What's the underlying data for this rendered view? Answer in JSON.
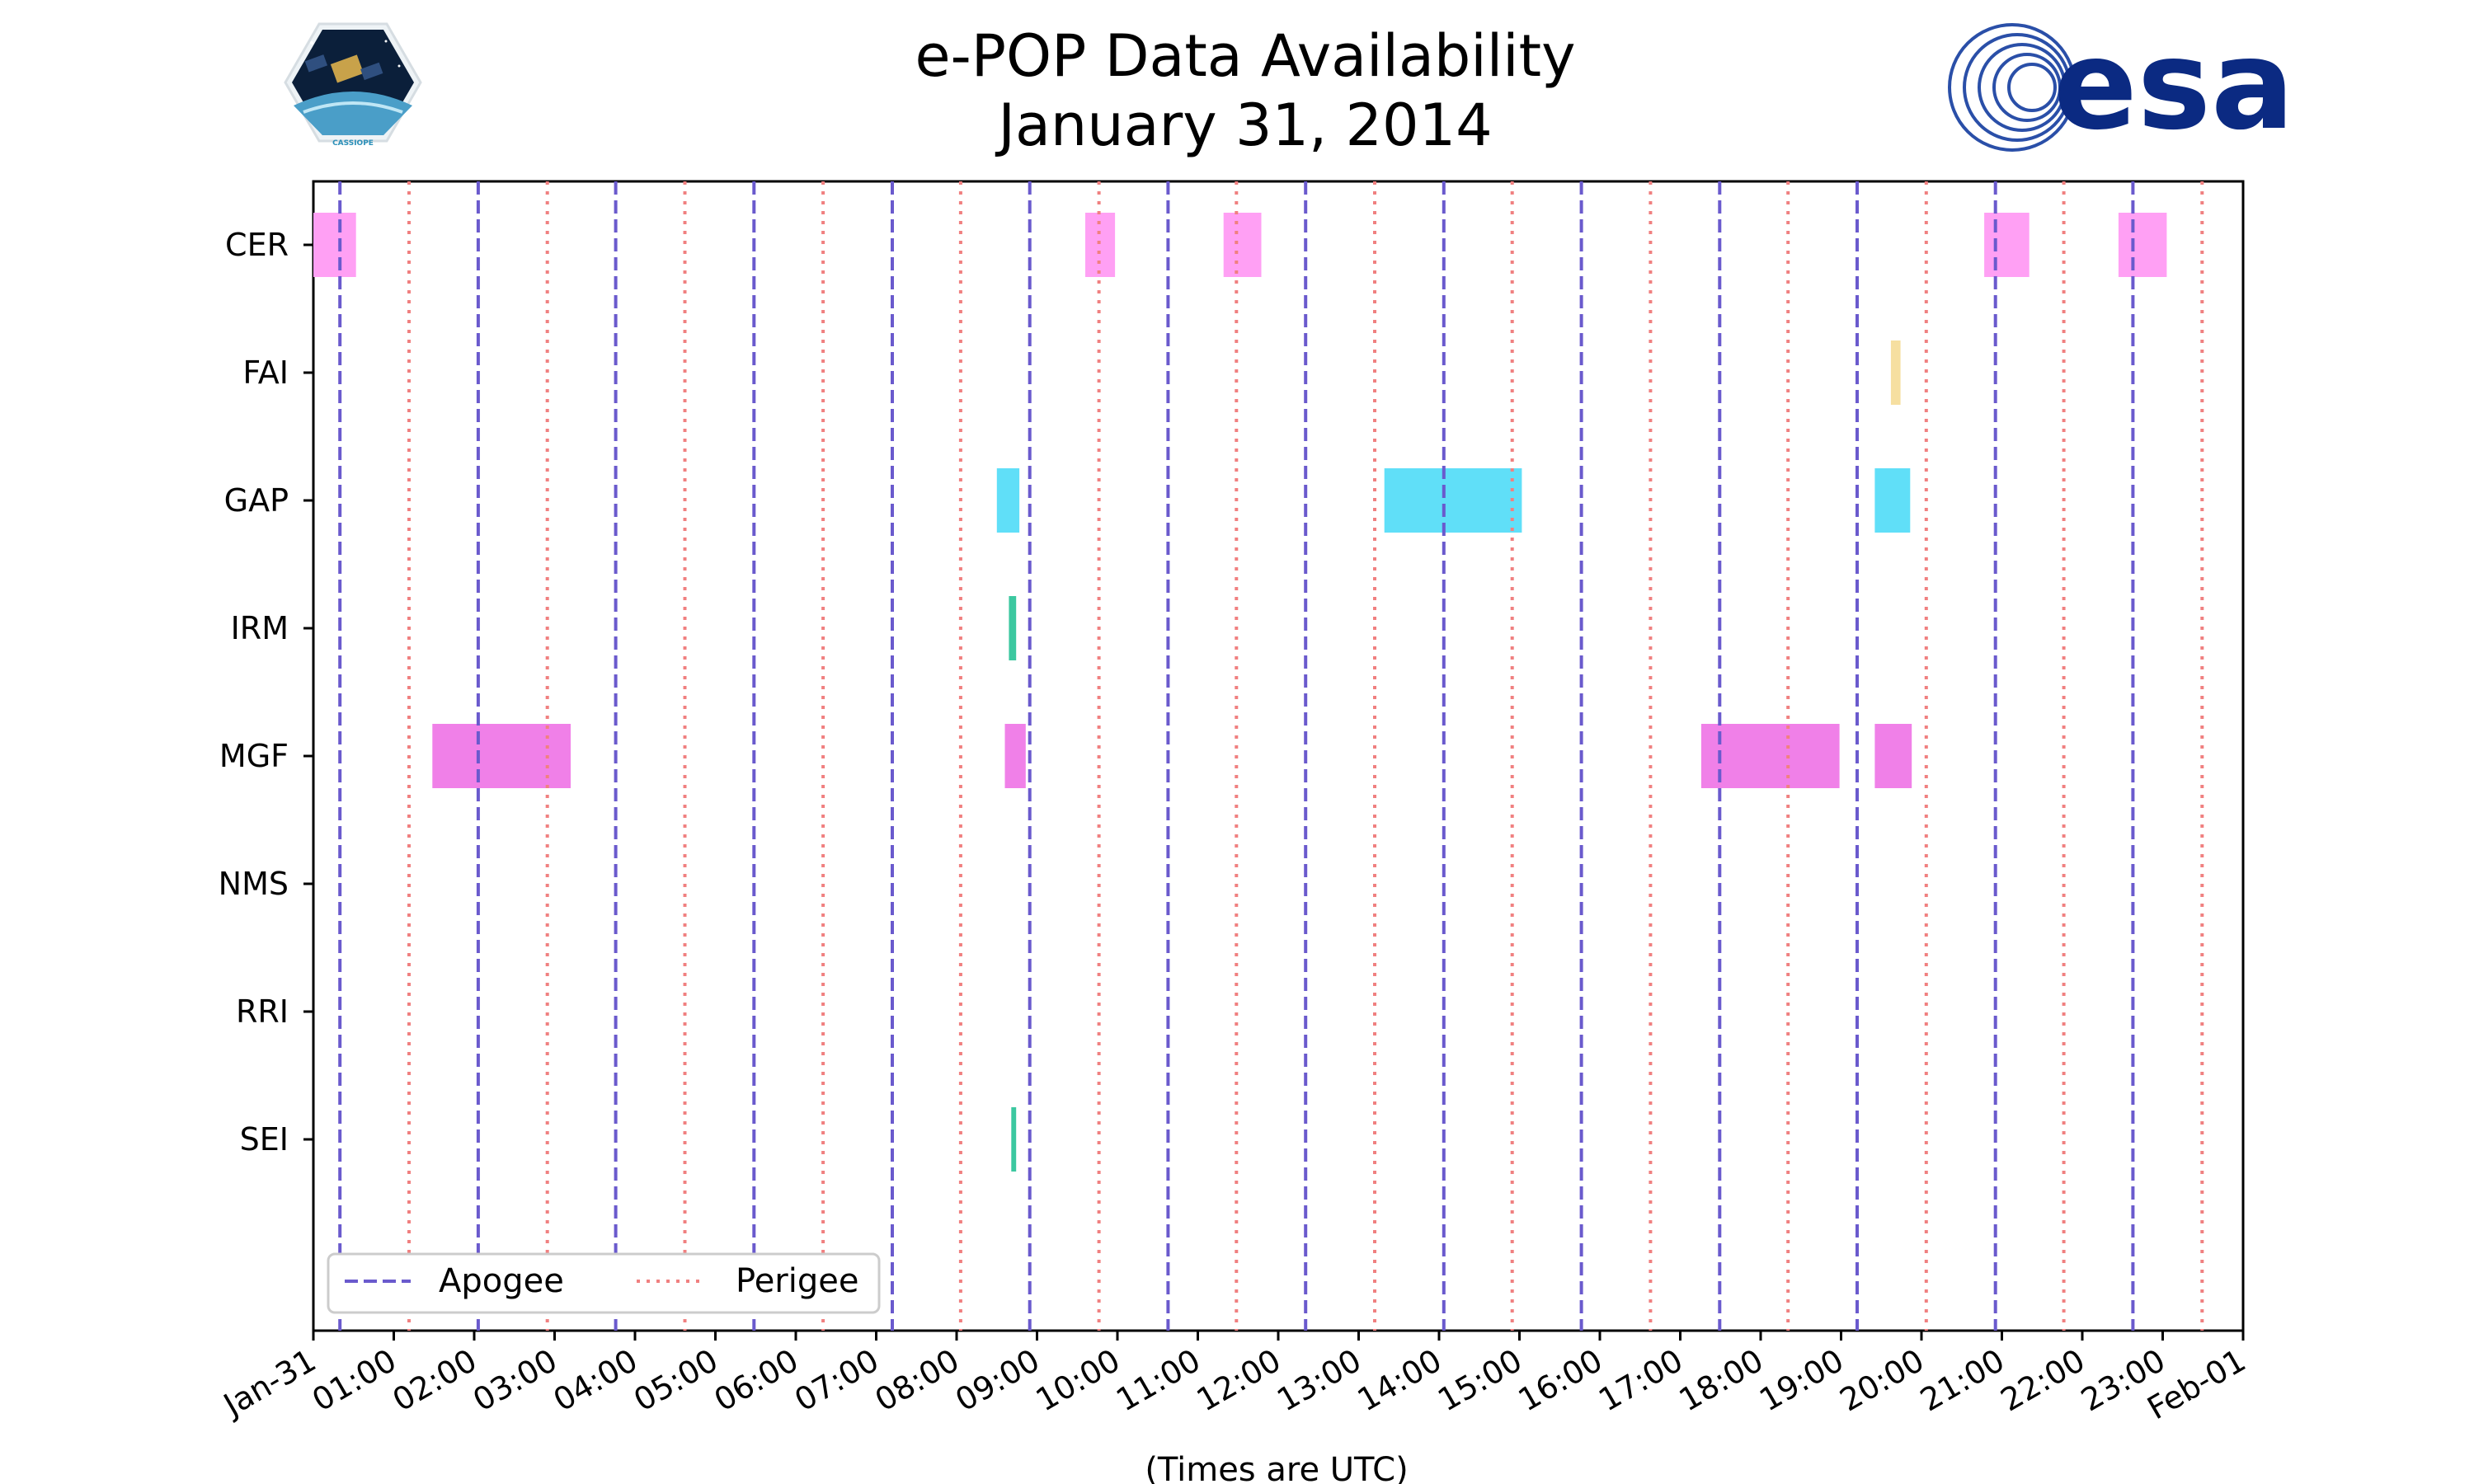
{
  "header": {
    "title_line1": "e-POP Data Availability",
    "title_line2": "January 31, 2014",
    "left_logo_label": "CASSIOPE",
    "right_logo_label": "esa"
  },
  "colors": {
    "apogee": "#6a5acd",
    "perigee": "#f08080",
    "CER": "#ffa0f4",
    "FAI": "#f6dfa0",
    "GAP": "#60dff8",
    "IRM": "#3cc8a0",
    "MGF": "#f080e8",
    "NMS": "#888888",
    "RRI": "#888888",
    "SEI": "#3cc8a0"
  },
  "chart_data": {
    "type": "broken-barh",
    "title": "e-POP Data Availability January 31, 2014",
    "xlabel": "(Times are UTC)",
    "ylabel": "",
    "xlim": [
      0,
      24
    ],
    "x_ticks": [
      {
        "value": 0,
        "label": "Jan-31"
      },
      {
        "value": 1,
        "label": "01:00"
      },
      {
        "value": 2,
        "label": "02:00"
      },
      {
        "value": 3,
        "label": "03:00"
      },
      {
        "value": 4,
        "label": "04:00"
      },
      {
        "value": 5,
        "label": "05:00"
      },
      {
        "value": 6,
        "label": "06:00"
      },
      {
        "value": 7,
        "label": "07:00"
      },
      {
        "value": 8,
        "label": "08:00"
      },
      {
        "value": 9,
        "label": "09:00"
      },
      {
        "value": 10,
        "label": "10:00"
      },
      {
        "value": 11,
        "label": "11:00"
      },
      {
        "value": 12,
        "label": "12:00"
      },
      {
        "value": 13,
        "label": "13:00"
      },
      {
        "value": 14,
        "label": "14:00"
      },
      {
        "value": 15,
        "label": "15:00"
      },
      {
        "value": 16,
        "label": "16:00"
      },
      {
        "value": 17,
        "label": "17:00"
      },
      {
        "value": 18,
        "label": "18:00"
      },
      {
        "value": 19,
        "label": "19:00"
      },
      {
        "value": 20,
        "label": "20:00"
      },
      {
        "value": 21,
        "label": "21:00"
      },
      {
        "value": 22,
        "label": "22:00"
      },
      {
        "value": 23,
        "label": "23:00"
      },
      {
        "value": 24,
        "label": "Feb-01"
      }
    ],
    "instruments": [
      "CER",
      "FAI",
      "GAP",
      "IRM",
      "MGF",
      "NMS",
      "RRI",
      "SEI"
    ],
    "series": [
      {
        "name": "CER",
        "intervals": [
          [
            0.0,
            0.53
          ],
          [
            9.6,
            9.97
          ],
          [
            11.32,
            11.79
          ],
          [
            20.78,
            21.34
          ],
          [
            22.45,
            23.05
          ]
        ]
      },
      {
        "name": "FAI",
        "intervals": [
          [
            19.62,
            19.74
          ]
        ]
      },
      {
        "name": "GAP",
        "intervals": [
          [
            8.5,
            8.78
          ],
          [
            13.32,
            15.03
          ],
          [
            19.42,
            19.86
          ]
        ]
      },
      {
        "name": "IRM",
        "intervals": [
          [
            8.65,
            8.74
          ]
        ]
      },
      {
        "name": "MGF",
        "intervals": [
          [
            1.48,
            3.2
          ],
          [
            8.6,
            8.86
          ],
          [
            17.26,
            18.98
          ],
          [
            19.42,
            19.88
          ]
        ]
      },
      {
        "name": "NMS",
        "intervals": []
      },
      {
        "name": "RRI",
        "intervals": []
      },
      {
        "name": "SEI",
        "intervals": [
          [
            8.68,
            8.74
          ]
        ]
      }
    ],
    "apogee_times": [
      0.33,
      2.05,
      3.76,
      5.48,
      7.2,
      8.91,
      10.63,
      12.34,
      14.06,
      15.77,
      17.49,
      19.2,
      20.92,
      22.63
    ],
    "perigee_times": [
      1.19,
      2.91,
      4.62,
      6.34,
      8.05,
      9.77,
      11.48,
      13.2,
      14.91,
      16.63,
      18.34,
      20.06,
      21.77,
      23.49
    ],
    "legend": {
      "position": "lower-left",
      "entries": [
        {
          "label": "Apogee",
          "style": "dashed"
        },
        {
          "label": "Perigee",
          "style": "dotted"
        }
      ]
    }
  }
}
